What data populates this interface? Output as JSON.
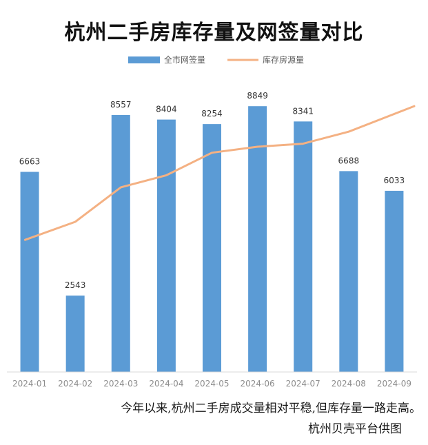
{
  "chart_data": {
    "type": "bar",
    "title": "杭州二手房库存量及网签量对比",
    "categories": [
      "2024-01",
      "2024-02",
      "2024-03",
      "2024-04",
      "2024-05",
      "2024-06",
      "2024-07",
      "2024-08",
      "2024-09"
    ],
    "series": [
      {
        "name": "全市网签量",
        "type": "bar",
        "color": "#5b9bd5",
        "values": [
          6663,
          2543,
          8557,
          8404,
          8254,
          8849,
          8341,
          6688,
          6033
        ]
      },
      {
        "name": "库存房源量",
        "type": "line",
        "color": "#f4b183",
        "values": [
          4400,
          5000,
          6150,
          6550,
          7300,
          7500,
          7600,
          8000,
          8850
        ]
      }
    ],
    "ylim": [
      0,
      10000
    ],
    "legend_position": "top-center",
    "grid": false
  },
  "caption": "今年以来,杭州二手房成交量相对平稳,但库存量一路走高。",
  "credit": "杭州贝壳平台供图"
}
